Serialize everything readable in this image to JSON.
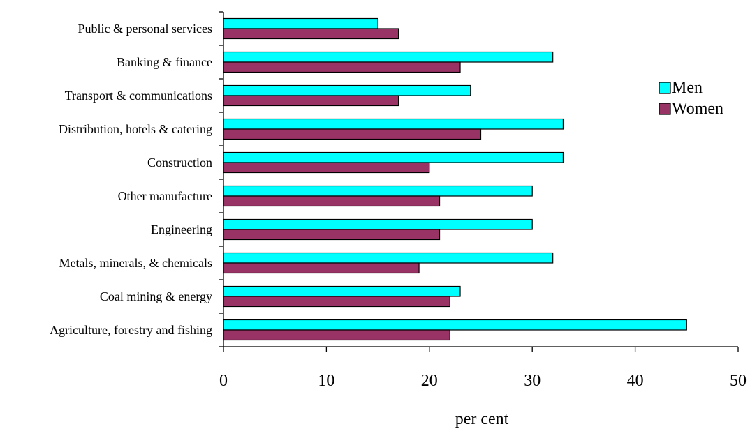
{
  "chart_data": {
    "type": "bar",
    "orientation": "horizontal",
    "title": "",
    "xlabel": "per cent",
    "ylabel": "",
    "xlim": [
      0,
      50
    ],
    "xticks": [
      0,
      10,
      20,
      30,
      40,
      50
    ],
    "grid": false,
    "legend_position": "right",
    "categories": [
      "Public & personal services",
      "Banking & finance",
      "Transport & communications",
      "Distribution, hotels & catering",
      "Construction",
      "Other manufacture",
      "Engineering",
      "Metals, minerals, & chemicals",
      "Coal mining & energy",
      "Agriculture, forestry and fishing"
    ],
    "series": [
      {
        "name": "Men",
        "color": "#00FFFF",
        "values": [
          15,
          32,
          24,
          33,
          33,
          30,
          30,
          32,
          23,
          45
        ]
      },
      {
        "name": "Women",
        "color": "#993366",
        "values": [
          17,
          23,
          17,
          25,
          20,
          21,
          21,
          19,
          22,
          22
        ]
      }
    ]
  }
}
